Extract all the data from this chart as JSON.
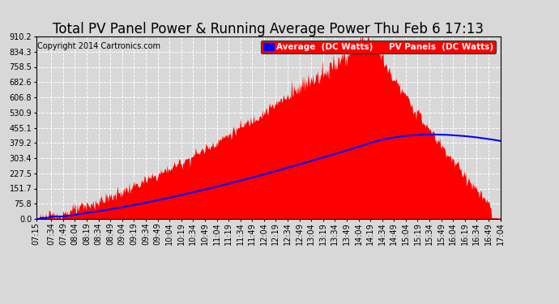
{
  "title": "Total PV Panel Power & Running Average Power Thu Feb 6 17:13",
  "copyright": "Copyright 2014 Cartronics.com",
  "legend_avg": "Average  (DC Watts)",
  "legend_pv": "PV Panels  (DC Watts)",
  "yticks": [
    0.0,
    75.8,
    151.7,
    227.5,
    303.4,
    379.2,
    455.1,
    530.9,
    606.8,
    682.6,
    758.5,
    834.3,
    910.2
  ],
  "xtick_labels": [
    "07:15",
    "07:34",
    "07:49",
    "08:04",
    "08:19",
    "08:34",
    "08:49",
    "09:04",
    "09:19",
    "09:34",
    "09:49",
    "10:04",
    "10:19",
    "10:34",
    "10:49",
    "11:04",
    "11:19",
    "11:34",
    "11:49",
    "12:04",
    "12:19",
    "12:34",
    "12:49",
    "13:04",
    "13:19",
    "13:34",
    "13:49",
    "14:04",
    "14:19",
    "14:34",
    "14:49",
    "15:04",
    "15:19",
    "15:34",
    "15:49",
    "16:04",
    "16:19",
    "16:34",
    "16:49",
    "17:04"
  ],
  "bg_color": "#d8d8d8",
  "grid_color": "white",
  "bar_color": "red",
  "avg_line_color": "blue",
  "title_fontsize": 12,
  "copyright_fontsize": 7,
  "tick_fontsize": 7,
  "legend_fontsize": 7.5,
  "ymax": 910.2,
  "ymin": 0.0
}
